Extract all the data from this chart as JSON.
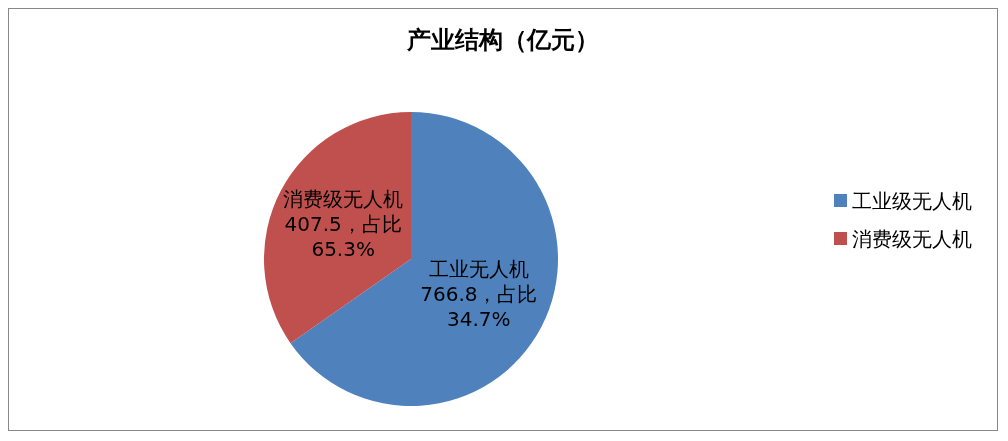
{
  "chart_data": {
    "type": "pie",
    "title": "产业结构（亿元）",
    "categories": [
      "工业级无人机",
      "消费级无人机"
    ],
    "values": [
      766.8,
      407.5
    ],
    "colors": [
      "#4f81bd",
      "#c0504d"
    ],
    "value_labels": [
      "工业无人机\n766.8，占比\n34.7%",
      "消费级无人机\n407.5，占比\n65.3%"
    ],
    "legend": "right"
  }
}
